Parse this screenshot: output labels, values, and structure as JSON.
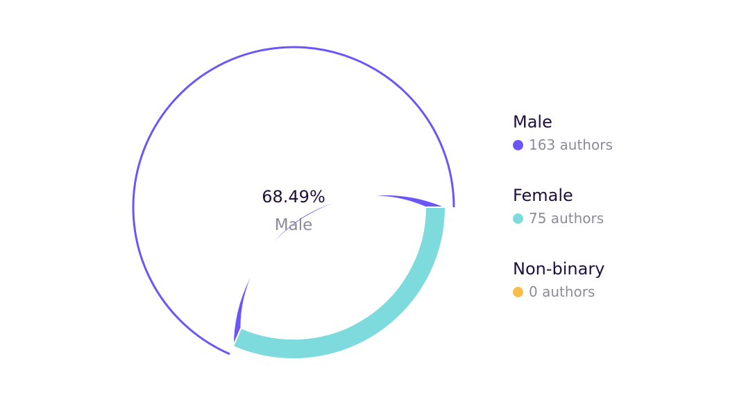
{
  "chart_data": {
    "type": "pie",
    "categories": [
      "Male",
      "Female",
      "Non-binary"
    ],
    "values": [
      163,
      75,
      0
    ],
    "value_labels": [
      "163 authors",
      "75 authors",
      "0 authors"
    ],
    "colors": [
      "#6a56f8",
      "#7ddbde",
      "#f7bf4a"
    ],
    "center_value": "68.49%",
    "center_label": "Male",
    "highlighted": "Male",
    "legend": "right"
  }
}
